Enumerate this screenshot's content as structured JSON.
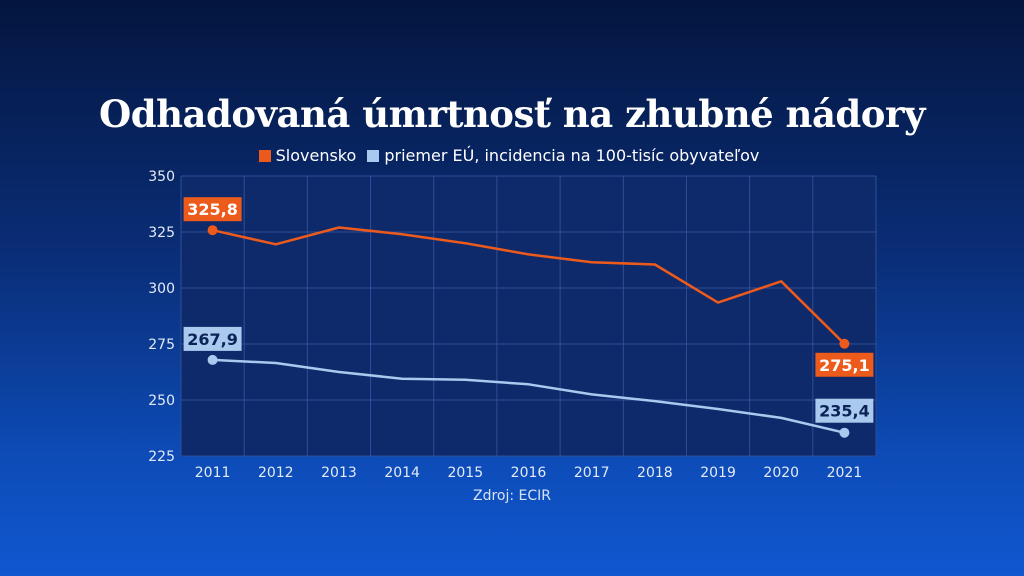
{
  "title": "Odhadovaná úmrtnosť na zhubné nádory",
  "legend": {
    "sk_label": "Slovensko",
    "eu_label": "priemer EÚ, incidencia na 100-tisíc obyvateľov"
  },
  "source": "Zdroj: ECIR",
  "colors": {
    "slovensko": "#ec5a1c",
    "eu": "#a9c9ef",
    "grid": "#2d4f9a",
    "plot_bg": "#0e2a6a"
  },
  "chart_data": {
    "type": "line",
    "title": "Odhadovaná úmrtnosť na zhubné nádory",
    "categories": [
      "2011",
      "2012",
      "2013",
      "2014",
      "2015",
      "2016",
      "2017",
      "2018",
      "2019",
      "2020",
      "2021"
    ],
    "series": [
      {
        "name": "Slovensko",
        "values": [
          325.8,
          319.5,
          327.0,
          324.0,
          320.0,
          315.0,
          311.5,
          310.5,
          293.5,
          303.0,
          275.1
        ]
      },
      {
        "name": "priemer EÚ",
        "values": [
          267.9,
          266.5,
          262.5,
          259.5,
          259.0,
          257.0,
          252.5,
          249.5,
          246.0,
          242.0,
          235.4
        ]
      }
    ],
    "data_labels": {
      "sk_first": "325,8",
      "sk_last": "275,1",
      "eu_first": "267,9",
      "eu_last": "235,4"
    },
    "ylim": [
      225,
      350
    ],
    "yticks": [
      225,
      250,
      275,
      300,
      325,
      350
    ],
    "xlabel": "",
    "ylabel": ""
  }
}
